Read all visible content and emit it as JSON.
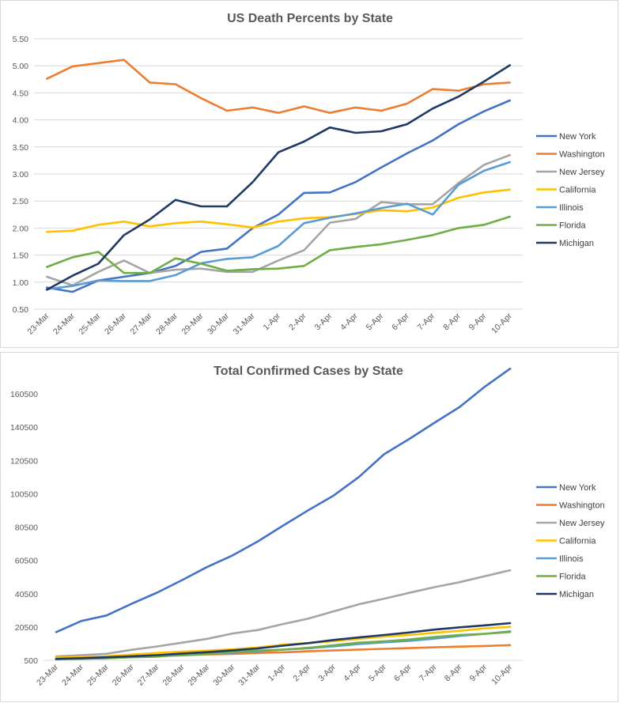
{
  "chart_data": [
    {
      "type": "line",
      "title": "US Death Percents by State",
      "xlabel": "",
      "ylabel": "",
      "ylim": [
        0.5,
        5.5
      ],
      "yticks": [
        "0.50",
        "1.00",
        "1.50",
        "2.00",
        "2.50",
        "3.00",
        "3.50",
        "4.00",
        "4.50",
        "5.00",
        "5.50"
      ],
      "grid": true,
      "legend": "right",
      "categories": [
        "23-Mar",
        "24-Mar",
        "25-Mar",
        "26-Mar",
        "27-Mar",
        "28-Mar",
        "29-Mar",
        "30-Mar",
        "31-Mar",
        "1-Apr",
        "2-Apr",
        "3-Apr",
        "4-Apr",
        "5-Apr",
        "6-Apr",
        "7-Apr",
        "8-Apr",
        "9-Apr",
        "10-Apr"
      ],
      "series": [
        {
          "name": "New York",
          "color": "#4472C4",
          "values": [
            0.9,
            0.82,
            1.03,
            1.1,
            1.17,
            1.3,
            1.56,
            1.62,
            2.0,
            2.25,
            2.65,
            2.66,
            2.85,
            3.12,
            3.38,
            3.62,
            3.92,
            4.16,
            4.36
          ]
        },
        {
          "name": "Washington",
          "color": "#ED7D31",
          "values": [
            4.76,
            4.99,
            5.05,
            5.11,
            4.69,
            4.66,
            4.4,
            4.17,
            4.23,
            4.13,
            4.25,
            4.13,
            4.23,
            4.17,
            4.3,
            4.57,
            4.54,
            4.66,
            4.69
          ]
        },
        {
          "name": "New Jersey",
          "color": "#A5A5A5",
          "values": [
            1.1,
            0.94,
            1.19,
            1.4,
            1.17,
            1.23,
            1.25,
            1.19,
            1.19,
            1.4,
            1.59,
            2.1,
            2.17,
            2.48,
            2.44,
            2.44,
            2.83,
            3.17,
            3.35
          ]
        },
        {
          "name": "California",
          "color": "#FFC000",
          "values": [
            1.93,
            1.95,
            2.06,
            2.12,
            2.03,
            2.09,
            2.12,
            2.07,
            2.01,
            2.12,
            2.18,
            2.2,
            2.26,
            2.33,
            2.31,
            2.38,
            2.56,
            2.66,
            2.71
          ]
        },
        {
          "name": "Illinois",
          "color": "#5B9BD5",
          "values": [
            0.87,
            0.93,
            1.03,
            1.02,
            1.02,
            1.13,
            1.35,
            1.43,
            1.46,
            1.67,
            2.09,
            2.19,
            2.27,
            2.37,
            2.45,
            2.25,
            2.8,
            3.06,
            3.22
          ]
        },
        {
          "name": "Florida",
          "color": "#70AD47",
          "values": [
            1.28,
            1.46,
            1.56,
            1.17,
            1.17,
            1.44,
            1.34,
            1.21,
            1.24,
            1.25,
            1.3,
            1.59,
            1.65,
            1.7,
            1.78,
            1.87,
            2.0,
            2.06,
            2.21
          ]
        },
        {
          "name": "Michigan",
          "color": "#203864",
          "values": [
            0.86,
            1.12,
            1.34,
            1.87,
            2.16,
            2.52,
            2.4,
            2.4,
            2.85,
            3.4,
            3.6,
            3.86,
            3.76,
            3.79,
            3.92,
            4.21,
            4.43,
            4.71,
            5.01
          ]
        }
      ]
    },
    {
      "type": "line",
      "title": "Total Confirmed Cases by State",
      "xlabel": "",
      "ylabel": "",
      "ylim": [
        500,
        160500
      ],
      "yticks": [
        "500",
        "20500",
        "40500",
        "60500",
        "80500",
        "100500",
        "120500",
        "140500",
        "160500"
      ],
      "grid": false,
      "legend": "right",
      "categories": [
        "23-Mar",
        "24-Mar",
        "25-Mar",
        "26-Mar",
        "27-Mar",
        "28-Mar",
        "29-Mar",
        "30-Mar",
        "31-Mar",
        "1-Apr",
        "2-Apr",
        "3-Apr",
        "4-Apr",
        "5-Apr",
        "6-Apr",
        "7-Apr",
        "8-Apr",
        "9-Apr",
        "10-Apr"
      ],
      "series": [
        {
          "name": "New York",
          "color": "#4472C4",
          "values": [
            17400,
            24100,
            27400,
            34500,
            41100,
            48700,
            56600,
            63500,
            71900,
            81400,
            90600,
            99400,
            110500,
            124200,
            133400,
            143100,
            152600,
            164800,
            175600
          ]
        },
        {
          "name": "Washington",
          "color": "#ED7D31",
          "values": [
            2000,
            2200,
            2500,
            2800,
            3200,
            3500,
            4000,
            4300,
            4900,
            5300,
            5900,
            6400,
            6900,
            7400,
            7800,
            8300,
            8700,
            9100,
            9600
          ]
        },
        {
          "name": "New Jersey",
          "color": "#A5A5A5",
          "values": [
            2800,
            3600,
            4400,
            6800,
            8800,
            11100,
            13400,
            16600,
            18700,
            22300,
            25500,
            29900,
            34100,
            37500,
            41000,
            44400,
            47400,
            51000,
            54600
          ]
        },
        {
          "name": "California",
          "color": "#FFC000",
          "values": [
            2100,
            2400,
            2900,
            3900,
            4900,
            5700,
            6300,
            7100,
            8200,
            9900,
            10900,
            12000,
            13400,
            14800,
            15700,
            17000,
            18200,
            19700,
            20600
          ]
        },
        {
          "name": "Illinois",
          "color": "#5B9BD5",
          "values": [
            1300,
            1500,
            1800,
            2500,
            3000,
            3500,
            4600,
            5000,
            5900,
            6900,
            7700,
            8900,
            10300,
            11300,
            12200,
            13500,
            15100,
            16400,
            17900
          ]
        },
        {
          "name": "Florida",
          "color": "#70AD47",
          "values": [
            1200,
            1400,
            1700,
            2300,
            2700,
            3800,
            4200,
            5500,
            6300,
            6900,
            8000,
            9500,
            11100,
            11900,
            13000,
            14500,
            15700,
            16400,
            17500
          ]
        },
        {
          "name": "Michigan",
          "color": "#203864",
          "values": [
            1300,
            1800,
            2300,
            2900,
            3600,
            4600,
            5400,
            6500,
            7600,
            9300,
            10800,
            12700,
            14200,
            15700,
            17200,
            18900,
            20300,
            21500,
            22800
          ]
        }
      ]
    }
  ]
}
